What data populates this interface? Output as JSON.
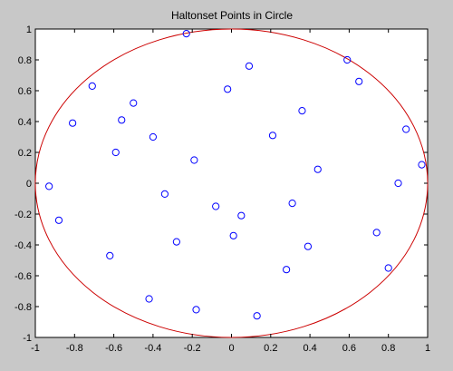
{
  "chart_data": {
    "type": "scatter",
    "title": "Haltonset Points in Circle",
    "xlabel": "",
    "ylabel": "",
    "xlim": [
      -1,
      1
    ],
    "ylim": [
      -1,
      1
    ],
    "xticks": [
      -1,
      -0.8,
      -0.6,
      -0.4,
      -0.2,
      0,
      0.2,
      0.4,
      0.6,
      0.8,
      1
    ],
    "yticks": [
      -1,
      -0.8,
      -0.6,
      -0.4,
      -0.2,
      0,
      0.2,
      0.4,
      0.6,
      0.8,
      1
    ],
    "xtick_labels": [
      "-1",
      "-0.8",
      "-0.6",
      "-0.4",
      "-0.2",
      "0",
      "0.2",
      "0.4",
      "0.6",
      "0.8",
      "1"
    ],
    "ytick_labels": [
      "-1",
      "-0.8",
      "-0.6",
      "-0.4",
      "-0.2",
      "0",
      "0.2",
      "0.4",
      "0.6",
      "0.8",
      "1"
    ],
    "grid": false,
    "legend": "none",
    "marker": "circle-open",
    "marker_color": "#0000ff",
    "circle": {
      "center": [
        0,
        0
      ],
      "radius": 1,
      "color": "#cc0000"
    },
    "points": [
      {
        "x": -0.93,
        "y": -0.02
      },
      {
        "x": -0.88,
        "y": -0.24
      },
      {
        "x": -0.81,
        "y": 0.39
      },
      {
        "x": -0.71,
        "y": 0.63
      },
      {
        "x": -0.62,
        "y": -0.47
      },
      {
        "x": -0.59,
        "y": 0.2
      },
      {
        "x": -0.56,
        "y": 0.41
      },
      {
        "x": -0.5,
        "y": 0.52
      },
      {
        "x": -0.42,
        "y": -0.75
      },
      {
        "x": -0.4,
        "y": 0.3
      },
      {
        "x": -0.34,
        "y": -0.07
      },
      {
        "x": -0.28,
        "y": -0.38
      },
      {
        "x": -0.23,
        "y": 0.97
      },
      {
        "x": -0.19,
        "y": 0.15
      },
      {
        "x": -0.18,
        "y": -0.82
      },
      {
        "x": -0.08,
        "y": -0.15
      },
      {
        "x": -0.02,
        "y": 0.61
      },
      {
        "x": 0.01,
        "y": -0.34
      },
      {
        "x": 0.05,
        "y": -0.21
      },
      {
        "x": 0.09,
        "y": 0.76
      },
      {
        "x": 0.13,
        "y": -0.86
      },
      {
        "x": 0.21,
        "y": 0.31
      },
      {
        "x": 0.28,
        "y": -0.56
      },
      {
        "x": 0.31,
        "y": -0.13
      },
      {
        "x": 0.36,
        "y": 0.47
      },
      {
        "x": 0.39,
        "y": -0.41
      },
      {
        "x": 0.44,
        "y": 0.09
      },
      {
        "x": 0.59,
        "y": 0.8
      },
      {
        "x": 0.65,
        "y": 0.66
      },
      {
        "x": 0.74,
        "y": -0.32
      },
      {
        "x": 0.8,
        "y": -0.55
      },
      {
        "x": 0.85,
        "y": 0.0
      },
      {
        "x": 0.89,
        "y": 0.35
      },
      {
        "x": 0.97,
        "y": 0.12
      }
    ]
  }
}
